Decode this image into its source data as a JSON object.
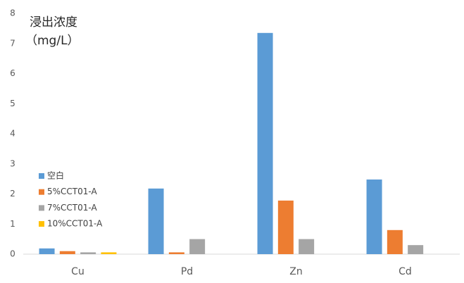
{
  "chart_data": {
    "type": "bar",
    "ylabel": [
      "浸出浓度",
      "（mg/L）"
    ],
    "categories": [
      "Cu",
      "Pd",
      "Zn",
      "Cd"
    ],
    "series": [
      {
        "name": "空白",
        "color": "#5b9bd5",
        "values": [
          0.19,
          2.18,
          7.35,
          2.48
        ]
      },
      {
        "name": "5%CCT01-A",
        "color": "#ed7d31",
        "values": [
          0.1,
          0.06,
          1.78,
          0.8
        ]
      },
      {
        "name": "7%CCT01-A",
        "color": "#a5a5a5",
        "values": [
          0.06,
          0.5,
          0.5,
          0.3
        ]
      },
      {
        "name": "10%CCT01-A",
        "color": "#ffc000",
        "values": [
          0.06,
          0,
          0,
          0
        ]
      }
    ],
    "ylim": [
      0,
      8
    ],
    "yticks": [
      0,
      1,
      2,
      3,
      4,
      5,
      6,
      7,
      8
    ],
    "grid": false,
    "legend": "left"
  }
}
